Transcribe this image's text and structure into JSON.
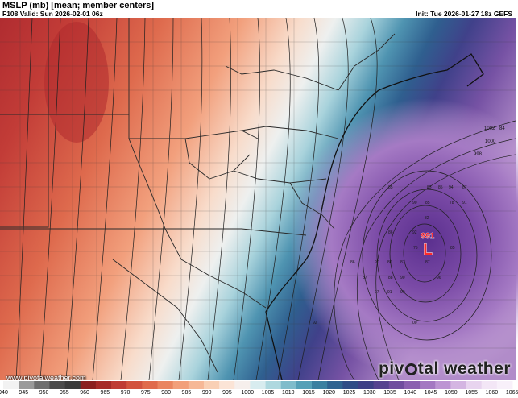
{
  "header": {
    "title": "MSLP (mb) [mean; member centers]",
    "valid": "F108 Valid: Sun 2026-02-01 06z",
    "init": "Init: Tue 2026-01-27 18z GEFS"
  },
  "low_center": {
    "value": "991",
    "symbol": "L"
  },
  "isobar_labels": [
    "1002",
    "84",
    "1000",
    "998"
  ],
  "member_centers": [
    "85",
    "83",
    "85",
    "94",
    "87",
    "90",
    "85",
    "78",
    "91",
    "82",
    "86",
    "92",
    "75",
    "85",
    "86",
    "90",
    "86",
    "87",
    "87",
    "90",
    "96",
    "88",
    "87",
    "97",
    "91",
    "90",
    "92",
    "00"
  ],
  "watermark": "www.pivotalweather.com",
  "brand": {
    "left": "piv",
    "right": "tal weather"
  },
  "colorbar": {
    "colors": [
      "#f2f2f2",
      "#9a9a9a",
      "#6e6e6e",
      "#4a4a4a",
      "#3a3a3a",
      "#8b1f1f",
      "#a62a28",
      "#bf3b34",
      "#d2533f",
      "#e06b4c",
      "#ea8560",
      "#f29f7a",
      "#f6b897",
      "#f9d0b5",
      "#fbe4d6",
      "#f6efec",
      "#d8ecef",
      "#aed8df",
      "#7fbccb",
      "#55a0b7",
      "#3a80a0",
      "#2e6390",
      "#2e4c86",
      "#3d3f86",
      "#55428f",
      "#6f4d9e",
      "#8a60b0",
      "#a478c2",
      "#bd95d3",
      "#d4b5e2",
      "#e8d4ef",
      "#f3e6f6",
      "#f8f0fa"
    ],
    "ticks": [
      "940",
      "945",
      "950",
      "955",
      "960",
      "965",
      "970",
      "975",
      "980",
      "985",
      "990",
      "995",
      "1000",
      "1005",
      "1010",
      "1015",
      "1020",
      "1025",
      "1030",
      "1035",
      "1040",
      "1045",
      "1050",
      "1055",
      "1060",
      "1065"
    ]
  }
}
